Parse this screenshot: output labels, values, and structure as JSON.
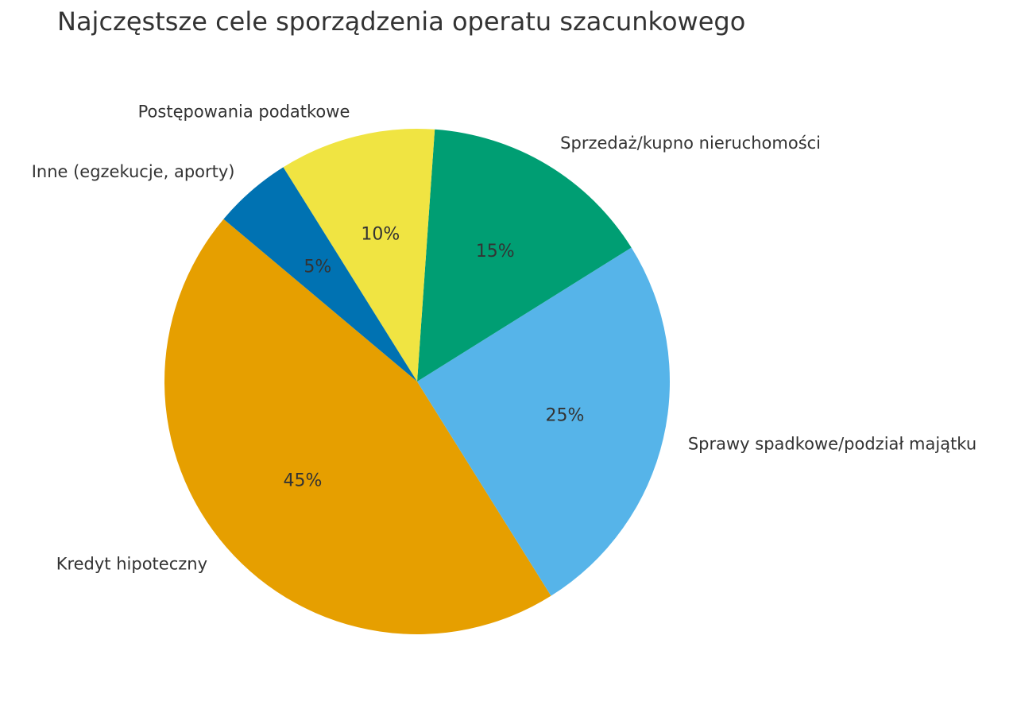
{
  "chart_data": {
    "type": "pie",
    "title": "Najczęstsze cele sporządzenia operatu szacunkowego",
    "categories": [
      "Kredyt hipoteczny",
      "Sprawy spadkowe/podział majątku",
      "Sprzedaż/kupno nieruchomości",
      "Postępowania podatkowe",
      "Inne (egzekucje, aporty)"
    ],
    "values": [
      45,
      25,
      15,
      10,
      5
    ],
    "value_labels": [
      "45%",
      "25%",
      "15%",
      "10%",
      "5%"
    ],
    "colors": [
      "#E69F00",
      "#56B4E9",
      "#009E73",
      "#F0E442",
      "#0072B2"
    ],
    "start_angle_deg": 140,
    "direction": "counterclockwise",
    "legend": "none (labels placed outside slices)"
  },
  "title": "Najczęstsze cele sporządzenia operatu szacunkowego"
}
